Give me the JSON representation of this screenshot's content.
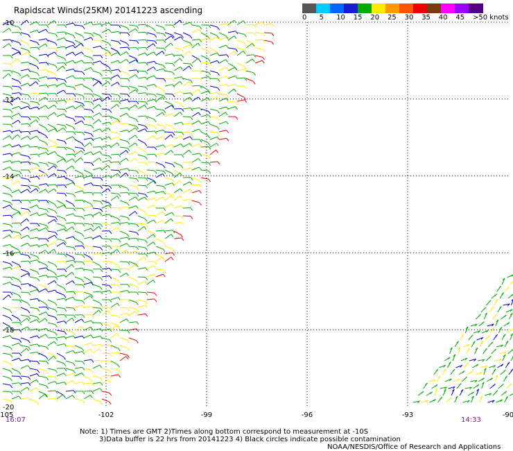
{
  "title": "Rapidscat Winds(25KM) 20141223 ascending",
  "legend": {
    "colors": [
      "#555555",
      "#00ccff",
      "#0066ff",
      "#1a1ad0",
      "#00aa00",
      "#ffe800",
      "#ff9900",
      "#ff5500",
      "#ee0000",
      "#7a3a10",
      "#ff00ff",
      "#9900ff",
      "#550088"
    ],
    "labels": [
      "0",
      "5",
      "10",
      "15",
      "20",
      "25",
      "30",
      "35",
      "40",
      "45",
      ">50 knots"
    ]
  },
  "map": {
    "lon_labels": [
      "-105",
      "-102",
      "-99",
      "-96",
      "-93",
      "-90"
    ],
    "lat_labels": [
      "-10",
      "-12",
      "-14",
      "-16",
      "-18",
      "-20"
    ],
    "lon_range": [
      -105,
      -90
    ],
    "lat_range": [
      -20,
      -10
    ],
    "swath_colors": {
      "low": "#0000cc",
      "mid": "#00aa00",
      "high": "#ffe800",
      "max": "#ee0000"
    }
  },
  "times": {
    "left": "16:07",
    "right": "14:33"
  },
  "notes": {
    "line1": "Note: 1) Times are GMT 2)Times along bottom correspond to measurement at -10S",
    "line2": "3)Data buffer is 22 hrs from 20141223 4) Black circles indicate possible contamination",
    "line3": "NOAA/NESDIS/Office of Research and Applications"
  }
}
